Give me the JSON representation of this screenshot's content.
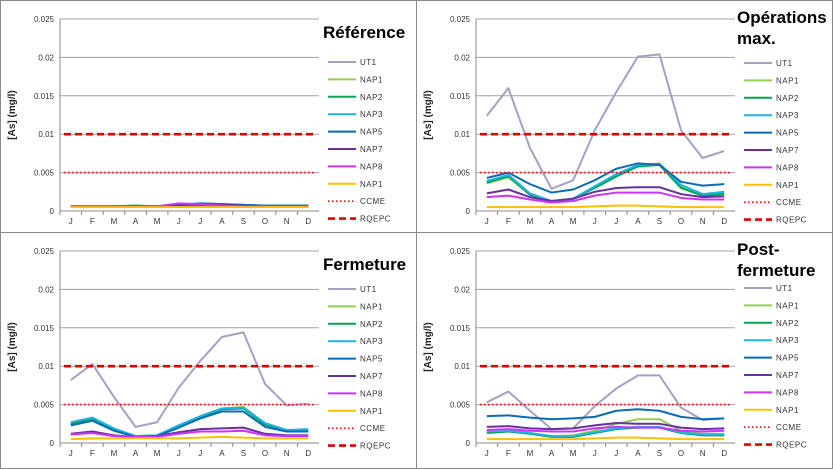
{
  "series_styles": {
    "UT1": "#a99ec4",
    "NAP1": "#92d050",
    "NAP2": "#00a550",
    "NAP3": "#1fb4e6",
    "NAP5": "#0a6cb8",
    "NAP7": "#6a2fa0",
    "NAP8": "#cc33ff",
    "NAP1b": "#ffc000",
    "CCME": "#ff0000",
    "RQEPC": "#e00000"
  },
  "chart_data": [
    {
      "type": "line",
      "title": [
        "Référence"
      ],
      "ylabel": "[As] (mg/l)",
      "categories": [
        "J",
        "F",
        "M",
        "A",
        "M",
        "J",
        "J",
        "A",
        "S",
        "O",
        "N",
        "D"
      ],
      "y_ticks": [
        "0",
        "0.005",
        "0.01",
        "0.015",
        "0.02",
        "0.025"
      ],
      "ylim": [
        0,
        0.025
      ],
      "grid": true,
      "legend": "right",
      "series": [
        {
          "name": "UT1",
          "key": "UT1",
          "values": [
            0.0006,
            0.0006,
            0.0006,
            0.0006,
            0.0006,
            0.0006,
            0.0006,
            0.0006,
            0.0006,
            0.0006,
            0.0006,
            0.0006
          ]
        },
        {
          "name": "NAP1",
          "key": "NAP1",
          "values": [
            0.0006,
            0.0006,
            0.0006,
            0.0007,
            0.0006,
            0.0006,
            0.0007,
            0.0007,
            0.0007,
            0.0007,
            0.0007,
            0.0007
          ]
        },
        {
          "name": "NAP2",
          "key": "NAP2",
          "values": [
            0.0006,
            0.0006,
            0.0006,
            0.0007,
            0.0006,
            0.0007,
            0.0007,
            0.0007,
            0.0007,
            0.0007,
            0.0007,
            0.0007
          ]
        },
        {
          "name": "NAP3",
          "key": "NAP3",
          "values": [
            0.0006,
            0.0006,
            0.0006,
            0.0006,
            0.0006,
            0.0008,
            0.001,
            0.0009,
            0.0008,
            0.0007,
            0.0007,
            0.0007
          ]
        },
        {
          "name": "NAP5",
          "key": "NAP5",
          "values": [
            0.0006,
            0.0006,
            0.0006,
            0.0006,
            0.0006,
            0.0008,
            0.001,
            0.0009,
            0.0008,
            0.0007,
            0.0007,
            0.0007
          ]
        },
        {
          "name": "NAP7",
          "key": "NAP7",
          "values": [
            0.0006,
            0.0006,
            0.0006,
            0.0006,
            0.0006,
            0.0008,
            0.0009,
            0.0008,
            0.0007,
            0.0006,
            0.0006,
            0.0006
          ]
        },
        {
          "name": "NAP8",
          "key": "NAP8",
          "values": [
            0.0006,
            0.0006,
            0.0006,
            0.0006,
            0.0006,
            0.001,
            0.0009,
            0.0007,
            0.0006,
            0.0006,
            0.0006,
            0.0006
          ]
        },
        {
          "name": "NAP1",
          "key": "NAP1b",
          "values": [
            0.0005,
            0.0005,
            0.0005,
            0.0005,
            0.0005,
            0.0005,
            0.0005,
            0.0005,
            0.0005,
            0.0005,
            0.0005,
            0.0005
          ]
        },
        {
          "name": "CCME",
          "key": "CCME",
          "style": "dotted",
          "values": [
            0.005,
            0.005,
            0.005,
            0.005,
            0.005,
            0.005,
            0.005,
            0.005,
            0.005,
            0.005,
            0.005,
            0.005
          ]
        },
        {
          "name": "RQEPC",
          "key": "RQEPC",
          "style": "dashed",
          "values": [
            0.01,
            0.01,
            0.01,
            0.01,
            0.01,
            0.01,
            0.01,
            0.01,
            0.01,
            0.01,
            0.01,
            0.01
          ]
        }
      ]
    },
    {
      "type": "line",
      "title": [
        "Opérations",
        "max."
      ],
      "ylabel": "[As] (mg/l)",
      "categories": [
        "J",
        "F",
        "M",
        "A",
        "M",
        "J",
        "J",
        "A",
        "S",
        "O",
        "N",
        "D"
      ],
      "y_ticks": [
        "0",
        "0.005",
        "0.01",
        "0.015",
        "0.02",
        "0.025"
      ],
      "ylim": [
        0,
        0.025
      ],
      "grid": true,
      "legend": "right",
      "series": [
        {
          "name": "UT1",
          "key": "UT1",
          "values": [
            0.0124,
            0.016,
            0.0082,
            0.0029,
            0.004,
            0.0105,
            0.0155,
            0.0201,
            0.0204,
            0.0105,
            0.0069,
            0.0078
          ]
        },
        {
          "name": "NAP1",
          "key": "NAP1",
          "values": [
            0.0036,
            0.0044,
            0.0022,
            0.0013,
            0.0016,
            0.0032,
            0.0046,
            0.006,
            0.0062,
            0.0032,
            0.0022,
            0.0024
          ]
        },
        {
          "name": "NAP2",
          "key": "NAP2",
          "values": [
            0.0037,
            0.0045,
            0.0021,
            0.0012,
            0.0016,
            0.003,
            0.0045,
            0.0058,
            0.006,
            0.003,
            0.002,
            0.0022
          ]
        },
        {
          "name": "NAP3",
          "key": "NAP3",
          "values": [
            0.0039,
            0.0047,
            0.0023,
            0.0013,
            0.0016,
            0.0032,
            0.0048,
            0.006,
            0.0061,
            0.0034,
            0.0022,
            0.0025
          ]
        },
        {
          "name": "NAP5",
          "key": "NAP5",
          "values": [
            0.0043,
            0.005,
            0.0035,
            0.0024,
            0.0028,
            0.004,
            0.0055,
            0.0062,
            0.006,
            0.0038,
            0.0033,
            0.0035
          ]
        },
        {
          "name": "NAP7",
          "key": "NAP7",
          "values": [
            0.0023,
            0.0028,
            0.0018,
            0.0013,
            0.0016,
            0.0025,
            0.003,
            0.0031,
            0.0031,
            0.0022,
            0.0018,
            0.0019
          ]
        },
        {
          "name": "NAP8",
          "key": "NAP8",
          "values": [
            0.0018,
            0.002,
            0.0015,
            0.0011,
            0.0013,
            0.002,
            0.0024,
            0.0024,
            0.0024,
            0.0017,
            0.0015,
            0.0015
          ]
        },
        {
          "name": "NAP1",
          "key": "NAP1b",
          "values": [
            0.0005,
            0.0005,
            0.0005,
            0.0005,
            0.0005,
            0.0006,
            0.0007,
            0.0007,
            0.0006,
            0.0005,
            0.0005,
            0.0005
          ]
        },
        {
          "name": "CCME",
          "key": "CCME",
          "style": "dotted",
          "values": [
            0.005,
            0.005,
            0.005,
            0.005,
            0.005,
            0.005,
            0.005,
            0.005,
            0.005,
            0.005,
            0.005,
            0.005
          ]
        },
        {
          "name": "RQEPC",
          "key": "RQEPC",
          "style": "dashed",
          "values": [
            0.01,
            0.01,
            0.01,
            0.01,
            0.01,
            0.01,
            0.01,
            0.01,
            0.01,
            0.01,
            0.01,
            0.01
          ]
        }
      ]
    },
    {
      "type": "line",
      "title": [
        "Fermeture"
      ],
      "ylabel": "[As] (mg/l)",
      "categories": [
        "J",
        "F",
        "M",
        "A",
        "M",
        "J",
        "J",
        "A",
        "S",
        "O",
        "N",
        "D"
      ],
      "y_ticks": [
        "0",
        "0.005",
        "0.01",
        "0.015",
        "0.02",
        "0.025"
      ],
      "ylim": [
        0,
        0.025
      ],
      "grid": true,
      "legend": "right",
      "series": [
        {
          "name": "UT1",
          "key": "UT1",
          "values": [
            0.0082,
            0.0103,
            0.006,
            0.0021,
            0.0027,
            0.0072,
            0.0107,
            0.0138,
            0.0144,
            0.0077,
            0.0049,
            0.0051
          ]
        },
        {
          "name": "NAP1",
          "key": "NAP1",
          "values": [
            0.0026,
            0.0032,
            0.0018,
            0.0009,
            0.001,
            0.0022,
            0.0034,
            0.0045,
            0.0047,
            0.0025,
            0.0017,
            0.0017
          ]
        },
        {
          "name": "NAP2",
          "key": "NAP2",
          "values": [
            0.0025,
            0.0031,
            0.0017,
            0.0009,
            0.001,
            0.0021,
            0.0033,
            0.0044,
            0.0045,
            0.0024,
            0.0016,
            0.0016
          ]
        },
        {
          "name": "NAP3",
          "key": "NAP3",
          "values": [
            0.0027,
            0.0033,
            0.0019,
            0.0009,
            0.001,
            0.0023,
            0.0035,
            0.0045,
            0.0046,
            0.0026,
            0.0017,
            0.0018
          ]
        },
        {
          "name": "NAP5",
          "key": "NAP5",
          "values": [
            0.0023,
            0.0029,
            0.0016,
            0.0008,
            0.0009,
            0.002,
            0.0032,
            0.0041,
            0.0041,
            0.0021,
            0.0015,
            0.0015
          ]
        },
        {
          "name": "NAP7",
          "key": "NAP7",
          "values": [
            0.0012,
            0.0015,
            0.001,
            0.0008,
            0.0009,
            0.0014,
            0.0018,
            0.0019,
            0.002,
            0.0012,
            0.001,
            0.001
          ]
        },
        {
          "name": "NAP8",
          "key": "NAP8",
          "values": [
            0.0011,
            0.0013,
            0.0009,
            0.0008,
            0.0008,
            0.0012,
            0.0015,
            0.0015,
            0.0016,
            0.001,
            0.0009,
            0.0009
          ]
        },
        {
          "name": "NAP1",
          "key": "NAP1b",
          "values": [
            0.0005,
            0.0006,
            0.0006,
            0.0006,
            0.0006,
            0.0006,
            0.0007,
            0.0008,
            0.0007,
            0.0006,
            0.0006,
            0.0006
          ]
        },
        {
          "name": "CCME",
          "key": "CCME",
          "style": "dotted",
          "values": [
            0.005,
            0.005,
            0.005,
            0.005,
            0.005,
            0.005,
            0.005,
            0.005,
            0.005,
            0.005,
            0.005,
            0.005
          ]
        },
        {
          "name": "RQEPC",
          "key": "RQEPC",
          "style": "dashed",
          "values": [
            0.01,
            0.01,
            0.01,
            0.01,
            0.01,
            0.01,
            0.01,
            0.01,
            0.01,
            0.01,
            0.01,
            0.01
          ]
        }
      ]
    },
    {
      "type": "line",
      "title": [
        "Post-",
        "fermeture"
      ],
      "ylabel": "[As] (mg/l)",
      "categories": [
        "J",
        "F",
        "M",
        "A",
        "M",
        "J",
        "J",
        "A",
        "S",
        "O",
        "N",
        "D"
      ],
      "y_ticks": [
        "0",
        "0.005",
        "0.01",
        "0.015",
        "0.02",
        "0.025"
      ],
      "ylim": [
        0,
        0.025
      ],
      "grid": true,
      "legend": "right",
      "series": [
        {
          "name": "UT1",
          "key": "UT1",
          "values": [
            0.0053,
            0.0067,
            0.0042,
            0.0018,
            0.0019,
            0.0048,
            0.0071,
            0.0088,
            0.0088,
            0.0046,
            0.003,
            0.0032
          ]
        },
        {
          "name": "NAP1",
          "key": "NAP1",
          "values": [
            0.0015,
            0.0017,
            0.0013,
            0.0009,
            0.001,
            0.0016,
            0.0025,
            0.0031,
            0.0031,
            0.0016,
            0.0012,
            0.0012
          ]
        },
        {
          "name": "NAP2",
          "key": "NAP2",
          "values": [
            0.0013,
            0.0015,
            0.0012,
            0.0008,
            0.0008,
            0.0013,
            0.0018,
            0.002,
            0.002,
            0.0013,
            0.001,
            0.001
          ]
        },
        {
          "name": "NAP3",
          "key": "NAP3",
          "values": [
            0.0015,
            0.0016,
            0.0013,
            0.0009,
            0.0009,
            0.0014,
            0.0019,
            0.0021,
            0.0021,
            0.0014,
            0.0011,
            0.0011
          ]
        },
        {
          "name": "NAP5",
          "key": "NAP5",
          "values": [
            0.0035,
            0.0036,
            0.0033,
            0.0031,
            0.0032,
            0.0034,
            0.0042,
            0.0044,
            0.0042,
            0.0034,
            0.0031,
            0.0032
          ]
        },
        {
          "name": "NAP7",
          "key": "NAP7",
          "values": [
            0.0021,
            0.0022,
            0.0019,
            0.0018,
            0.0019,
            0.0023,
            0.0026,
            0.0025,
            0.0025,
            0.002,
            0.0018,
            0.0019
          ]
        },
        {
          "name": "NAP8",
          "key": "NAP8",
          "values": [
            0.0017,
            0.0018,
            0.0016,
            0.0015,
            0.0015,
            0.0019,
            0.0021,
            0.002,
            0.002,
            0.0016,
            0.0015,
            0.0016
          ]
        },
        {
          "name": "NAP1",
          "key": "NAP1b",
          "values": [
            0.0005,
            0.0005,
            0.0005,
            0.0005,
            0.0005,
            0.0006,
            0.0007,
            0.0007,
            0.0006,
            0.0005,
            0.0005,
            0.0005
          ]
        },
        {
          "name": "CCME",
          "key": "CCME",
          "style": "dotted",
          "values": [
            0.005,
            0.005,
            0.005,
            0.005,
            0.005,
            0.005,
            0.005,
            0.005,
            0.005,
            0.005,
            0.005,
            0.005
          ]
        },
        {
          "name": "RQEPC",
          "key": "RQEPC",
          "style": "dashed",
          "values": [
            0.01,
            0.01,
            0.01,
            0.01,
            0.01,
            0.01,
            0.01,
            0.01,
            0.01,
            0.01,
            0.01,
            0.01
          ]
        }
      ]
    }
  ]
}
